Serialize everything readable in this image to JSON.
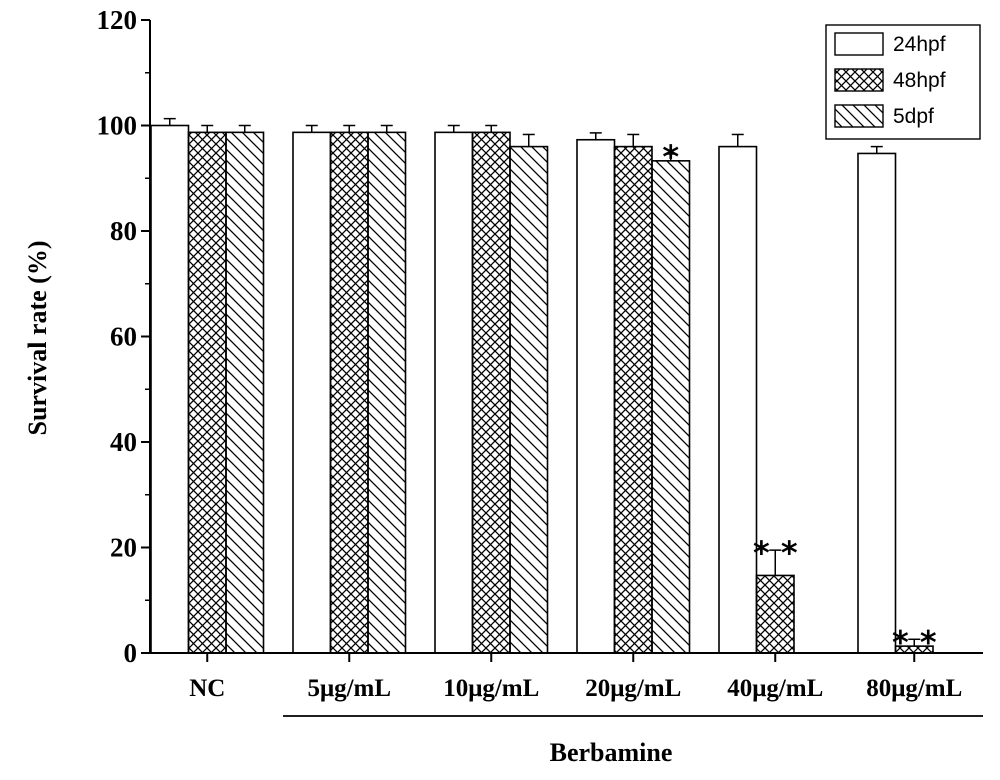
{
  "chart_data": {
    "type": "bar",
    "title": "",
    "xlabel": "Berbamine",
    "ylabel": "Survival rate (%)",
    "ylim": [
      0,
      120
    ],
    "yticks": [
      0,
      20,
      40,
      60,
      80,
      100,
      120
    ],
    "categories": [
      "NC",
      "5μg/mL",
      "10μg/mL",
      "20μg/mL",
      "40μg/mL",
      "80μg/mL"
    ],
    "series": [
      {
        "name": "24hpf",
        "pattern": "open",
        "values": [
          100,
          98.7,
          98.7,
          97.3,
          96,
          94.7
        ],
        "errors": [
          1.3,
          1.3,
          1.3,
          1.3,
          2.3,
          1.3
        ],
        "significance": [
          "",
          "",
          "",
          "",
          "",
          ""
        ]
      },
      {
        "name": "48hpf",
        "pattern": "crosshatch",
        "values": [
          98.7,
          98.7,
          98.7,
          96,
          14.7,
          1.3
        ],
        "errors": [
          1.3,
          1.3,
          1.3,
          2.3,
          4.8,
          1.3
        ],
        "significance": [
          "",
          "",
          "",
          "",
          "**",
          "**"
        ]
      },
      {
        "name": "5dpf",
        "pattern": "diagonal",
        "values": [
          98.7,
          98.7,
          96,
          93.3,
          null,
          null
        ],
        "errors": [
          1.3,
          1.3,
          2.3,
          1.3,
          null,
          null
        ],
        "significance": [
          "",
          "",
          "",
          "*",
          "",
          ""
        ]
      }
    ],
    "legend_position": "top-right",
    "grid": false
  },
  "colors": {
    "bar_fill": "#ffffff",
    "stroke": "#000000"
  }
}
